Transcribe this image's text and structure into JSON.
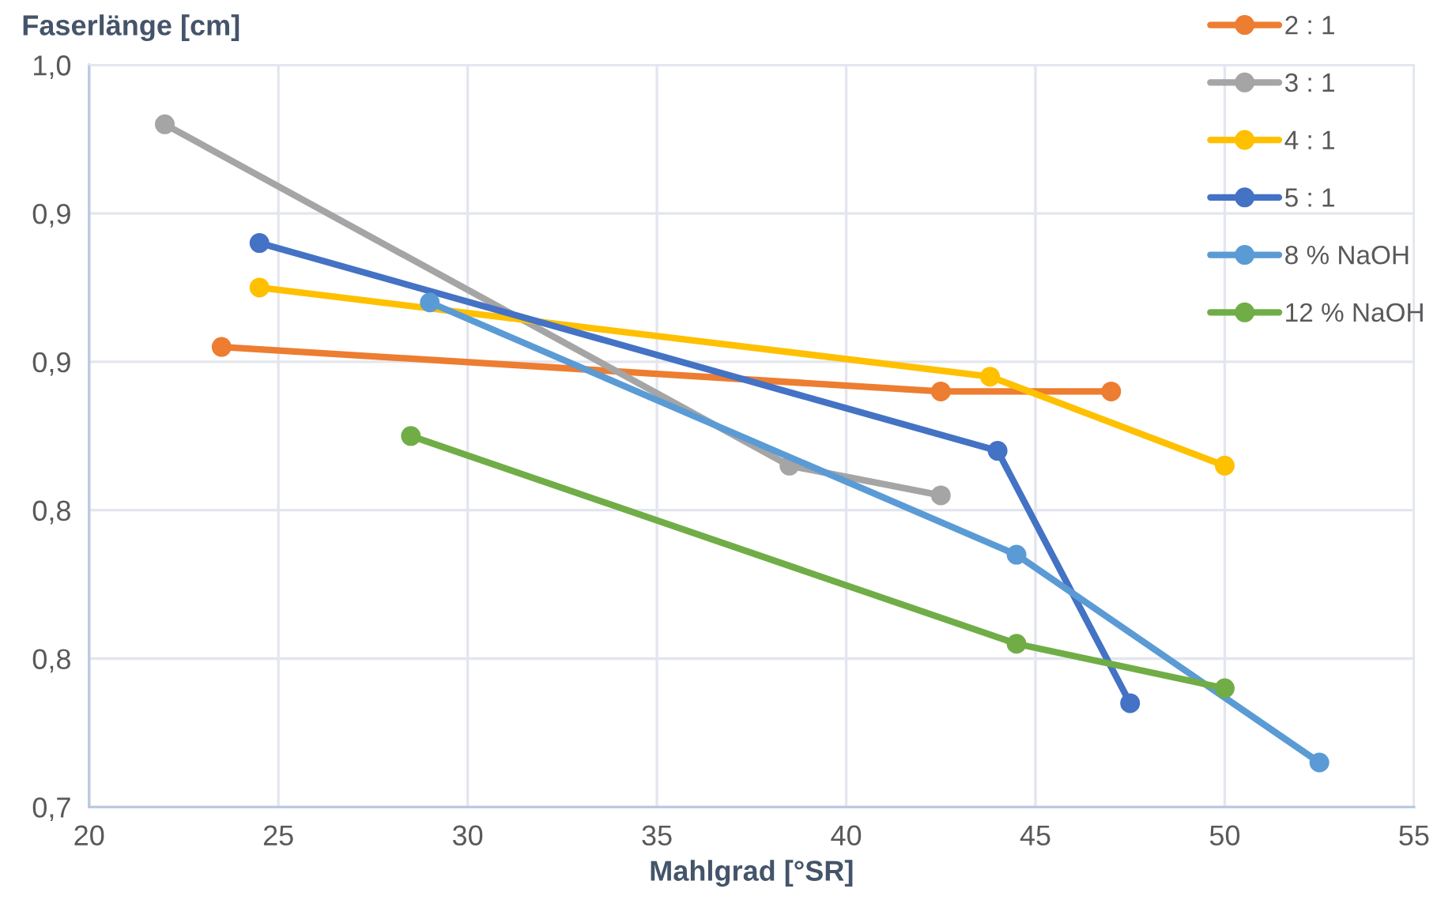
{
  "chart_data": {
    "type": "line",
    "xlabel": "Mahlgrad [°SR]",
    "ylabel": "Faserlänge [cm]",
    "xlim": [
      20,
      55
    ],
    "xticks": [
      20,
      25,
      30,
      35,
      40,
      45,
      50,
      55
    ],
    "ylim": [
      0.7,
      1.0
    ],
    "yticks": [
      {
        "value": 0.7,
        "label": "0,7"
      },
      {
        "value": 0.76,
        "label": "0,8"
      },
      {
        "value": 0.82,
        "label": "0,8"
      },
      {
        "value": 0.88,
        "label": "0,9"
      },
      {
        "value": 0.94,
        "label": "0,9"
      },
      {
        "value": 1.0,
        "label": "1,0"
      }
    ],
    "grid": true,
    "legend": "top right",
    "marker": "circle",
    "line_style": "solid",
    "series": [
      {
        "name": "2 : 1",
        "color": "#ed7d31",
        "x": [
          23.5,
          42.5,
          47.0
        ],
        "values": [
          0.886,
          0.868,
          0.868
        ]
      },
      {
        "name": "3 : 1",
        "color": "#a5a5a5",
        "x": [
          22.0,
          38.5,
          42.5
        ],
        "values": [
          0.976,
          0.838,
          0.826
        ]
      },
      {
        "name": "4 : 1",
        "color": "#ffc000",
        "x": [
          24.5,
          43.8,
          50.0
        ],
        "values": [
          0.91,
          0.874,
          0.838
        ]
      },
      {
        "name": "5 : 1",
        "color": "#4472c4",
        "x": [
          24.5,
          44.0,
          47.5
        ],
        "values": [
          0.928,
          0.844,
          0.742
        ]
      },
      {
        "name": "8 % NaOH",
        "color": "#5b9bd5",
        "x": [
          29.0,
          44.5,
          52.5
        ],
        "values": [
          0.904,
          0.802,
          0.718
        ]
      },
      {
        "name": "12 % NaOH",
        "color": "#70ad47",
        "x": [
          28.5,
          44.5,
          50.0
        ],
        "values": [
          0.85,
          0.766,
          0.748
        ]
      }
    ]
  }
}
